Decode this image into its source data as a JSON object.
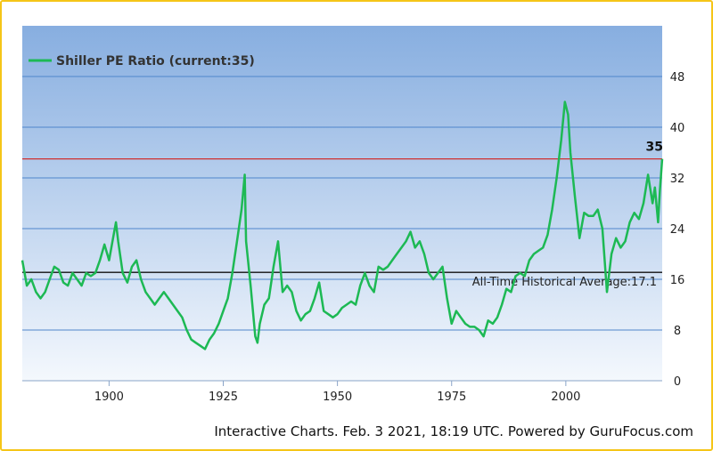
{
  "chart_data": {
    "type": "line",
    "title": "",
    "xlabel": "",
    "ylabel": "",
    "xlim": [
      1881,
      2021.1
    ],
    "ylim": [
      0,
      56
    ],
    "x_ticks": [
      1900,
      1925,
      1950,
      1975,
      2000
    ],
    "y_ticks": [
      0,
      8,
      16,
      24,
      32,
      40,
      48
    ],
    "grid": true,
    "legend": {
      "placement": "top-left",
      "label": "Shiller PE Ratio (current:35)"
    },
    "series": [
      {
        "name": "Shiller PE Ratio (current:35)",
        "color": "#1db954",
        "points": [
          [
            1881,
            19
          ],
          [
            1881.5,
            17
          ],
          [
            1882,
            15
          ],
          [
            1883,
            16
          ],
          [
            1884,
            14
          ],
          [
            1885,
            13
          ],
          [
            1886,
            14
          ],
          [
            1887,
            16
          ],
          [
            1888,
            18
          ],
          [
            1889,
            17.5
          ],
          [
            1890,
            15.5
          ],
          [
            1891,
            15
          ],
          [
            1892,
            17
          ],
          [
            1893,
            16
          ],
          [
            1894,
            15
          ],
          [
            1895,
            17
          ],
          [
            1896,
            16.5
          ],
          [
            1897,
            17
          ],
          [
            1898,
            19
          ],
          [
            1899,
            21.5
          ],
          [
            1900,
            19
          ],
          [
            1901,
            23
          ],
          [
            1901.5,
            25
          ],
          [
            1902,
            22
          ],
          [
            1903,
            17
          ],
          [
            1904,
            15.5
          ],
          [
            1905,
            18
          ],
          [
            1906,
            19
          ],
          [
            1907,
            16
          ],
          [
            1908,
            14
          ],
          [
            1909,
            13
          ],
          [
            1910,
            12
          ],
          [
            1911,
            13
          ],
          [
            1912,
            14
          ],
          [
            1913,
            13
          ],
          [
            1914,
            12
          ],
          [
            1915,
            11
          ],
          [
            1916,
            10
          ],
          [
            1917,
            8
          ],
          [
            1918,
            6.5
          ],
          [
            1919,
            6
          ],
          [
            1920,
            5.5
          ],
          [
            1921,
            5
          ],
          [
            1922,
            6.5
          ],
          [
            1923,
            7.5
          ],
          [
            1924,
            9
          ],
          [
            1925,
            11
          ],
          [
            1926,
            13
          ],
          [
            1927,
            17
          ],
          [
            1928,
            22
          ],
          [
            1929,
            27
          ],
          [
            1929.7,
            32.5
          ],
          [
            1930,
            22
          ],
          [
            1931,
            15
          ],
          [
            1932,
            7
          ],
          [
            1932.5,
            6
          ],
          [
            1933,
            9
          ],
          [
            1934,
            12
          ],
          [
            1935,
            13
          ],
          [
            1936,
            18
          ],
          [
            1937,
            22
          ],
          [
            1938,
            14
          ],
          [
            1939,
            15
          ],
          [
            1940,
            14
          ],
          [
            1941,
            11
          ],
          [
            1942,
            9.5
          ],
          [
            1943,
            10.5
          ],
          [
            1944,
            11
          ],
          [
            1945,
            13
          ],
          [
            1946,
            15.5
          ],
          [
            1947,
            11
          ],
          [
            1948,
            10.5
          ],
          [
            1949,
            10
          ],
          [
            1950,
            10.5
          ],
          [
            1951,
            11.5
          ],
          [
            1952,
            12
          ],
          [
            1953,
            12.5
          ],
          [
            1954,
            12
          ],
          [
            1955,
            15
          ],
          [
            1956,
            17
          ],
          [
            1957,
            15
          ],
          [
            1958,
            14
          ],
          [
            1959,
            18
          ],
          [
            1960,
            17.5
          ],
          [
            1961,
            18
          ],
          [
            1962,
            19
          ],
          [
            1963,
            20
          ],
          [
            1964,
            21
          ],
          [
            1965,
            22
          ],
          [
            1966,
            23.5
          ],
          [
            1967,
            21
          ],
          [
            1968,
            22
          ],
          [
            1969,
            20
          ],
          [
            1970,
            17
          ],
          [
            1971,
            16
          ],
          [
            1972,
            17
          ],
          [
            1973,
            18
          ],
          [
            1974,
            13
          ],
          [
            1975,
            9
          ],
          [
            1976,
            11
          ],
          [
            1977,
            10
          ],
          [
            1978,
            9
          ],
          [
            1979,
            8.5
          ],
          [
            1980,
            8.5
          ],
          [
            1981,
            8
          ],
          [
            1982,
            7
          ],
          [
            1983,
            9.5
          ],
          [
            1984,
            9
          ],
          [
            1985,
            10
          ],
          [
            1986,
            12
          ],
          [
            1987,
            14.5
          ],
          [
            1988,
            14
          ],
          [
            1989,
            16.5
          ],
          [
            1990,
            17
          ],
          [
            1991,
            16.5
          ],
          [
            1992,
            19
          ],
          [
            1993,
            20
          ],
          [
            1994,
            20.5
          ],
          [
            1995,
            21
          ],
          [
            1996,
            23
          ],
          [
            1997,
            27
          ],
          [
            1998,
            32
          ],
          [
            1999,
            38
          ],
          [
            1999.8,
            44
          ],
          [
            2000.5,
            42
          ],
          [
            2001,
            36
          ],
          [
            2002,
            29
          ],
          [
            2003,
            22.5
          ],
          [
            2004,
            26.5
          ],
          [
            2005,
            26
          ],
          [
            2006,
            26
          ],
          [
            2007,
            27
          ],
          [
            2008,
            24
          ],
          [
            2009,
            14
          ],
          [
            2010,
            20
          ],
          [
            2011,
            22.5
          ],
          [
            2012,
            21
          ],
          [
            2013,
            22
          ],
          [
            2014,
            25
          ],
          [
            2015,
            26.5
          ],
          [
            2016,
            25.5
          ],
          [
            2017,
            28
          ],
          [
            2018,
            32.5
          ],
          [
            2019,
            28
          ],
          [
            2019.5,
            30.5
          ],
          [
            2020.2,
            25
          ],
          [
            2020.6,
            30
          ],
          [
            2021.1,
            35
          ]
        ]
      }
    ],
    "reference_lines": [
      {
        "value": 35,
        "color": "#d03030",
        "label": "35"
      },
      {
        "value": 17.1,
        "color": "#111111",
        "label": "All-Time Historical Average:17.1"
      }
    ],
    "footer": "Interactive Charts. Feb. 3 2021, 18:19 UTC. Powered by GuruFocus.com"
  }
}
